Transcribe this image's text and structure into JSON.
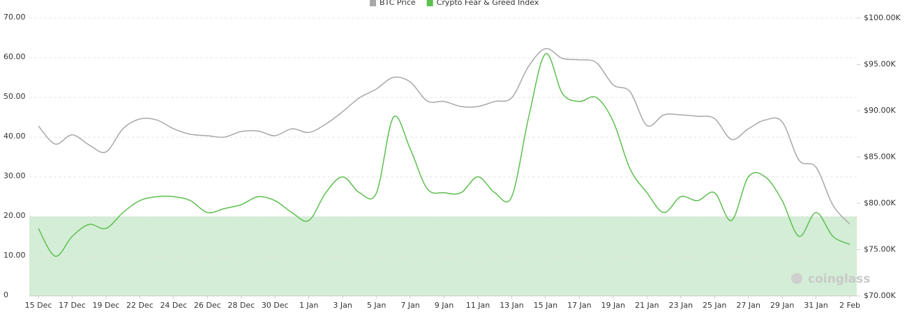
{
  "chart_data": {
    "type": "line",
    "categories": [
      "15 Dec",
      null,
      "17 Dec",
      null,
      "19 Dec",
      null,
      "22 Dec",
      null,
      "24 Dec",
      null,
      "26 Dec",
      null,
      "28 Dec",
      null,
      "30 Dec",
      null,
      "1 Jan",
      null,
      "3 Jan",
      null,
      "5 Jan",
      null,
      "7 Jan",
      null,
      "9 Jan",
      null,
      "11 Jan",
      null,
      "13 Jan",
      null,
      "15 Jan",
      null,
      "17 Jan",
      null,
      "19 Jan",
      null,
      "21 Jan",
      null,
      "23 Jan",
      null,
      "25 Jan",
      null,
      "27 Jan",
      null,
      "29 Jan",
      null,
      "31 Jan",
      null,
      "2 Feb"
    ],
    "series": [
      {
        "name": "BTC Price",
        "color": "#a8a8a8",
        "axis": "y2",
        "values": [
          88350,
          86400,
          87400,
          86300,
          85550,
          88050,
          89100,
          89000,
          88050,
          87450,
          87300,
          87150,
          87750,
          87800,
          87300,
          88050,
          87650,
          88550,
          89900,
          91400,
          92350,
          93600,
          93100,
          91050,
          91000,
          90450,
          90450,
          91000,
          91400,
          94800,
          96700,
          95650,
          95500,
          95200,
          92800,
          92050,
          88400,
          89550,
          89550,
          89400,
          89150,
          86900,
          88050,
          89000,
          88800,
          84650,
          83900,
          79800,
          77750
        ]
      },
      {
        "name": "Crypto Fear & Greed Index",
        "color": "#5cbf4e",
        "values": [
          17,
          10,
          15,
          18,
          17,
          21,
          24,
          25,
          25,
          24,
          21,
          22,
          23,
          25,
          24,
          21,
          19,
          26,
          30,
          26,
          26,
          45,
          37,
          27,
          26,
          26,
          30,
          26,
          25,
          45,
          61,
          51,
          49,
          50,
          44,
          32,
          26,
          21,
          25,
          24,
          26,
          19,
          30,
          30,
          24,
          15,
          21,
          15,
          13
        ]
      }
    ],
    "ylim": [
      0,
      70
    ],
    "yticks": [
      0,
      {
        "value": 10,
        "label": "10.00"
      },
      {
        "value": 20,
        "label": "20.00"
      },
      {
        "value": 30,
        "label": "30.00"
      },
      {
        "value": 40,
        "label": "40.00"
      },
      {
        "value": 50,
        "label": "50.00"
      },
      {
        "value": 60,
        "label": "60.00"
      },
      {
        "value": 70,
        "label": "70.00"
      }
    ],
    "y2lim": [
      70000,
      100000
    ],
    "y2ticks": [
      {
        "value": 70000,
        "label": "$70.00K"
      },
      {
        "value": 75000,
        "label": "$75.00K"
      },
      {
        "value": 80000,
        "label": "$80.00K"
      },
      {
        "value": 85000,
        "label": "$85.00K"
      },
      {
        "value": 90000,
        "label": "$90.00K"
      },
      {
        "value": 95000,
        "label": "$95.00K"
      },
      {
        "value": 100000,
        "label": "$100.00K"
      }
    ],
    "shaded_band": {
      "range": [
        0,
        20
      ],
      "color": "#d4edd6"
    },
    "grid": true,
    "legend": "top",
    "watermark": "coinglass"
  }
}
